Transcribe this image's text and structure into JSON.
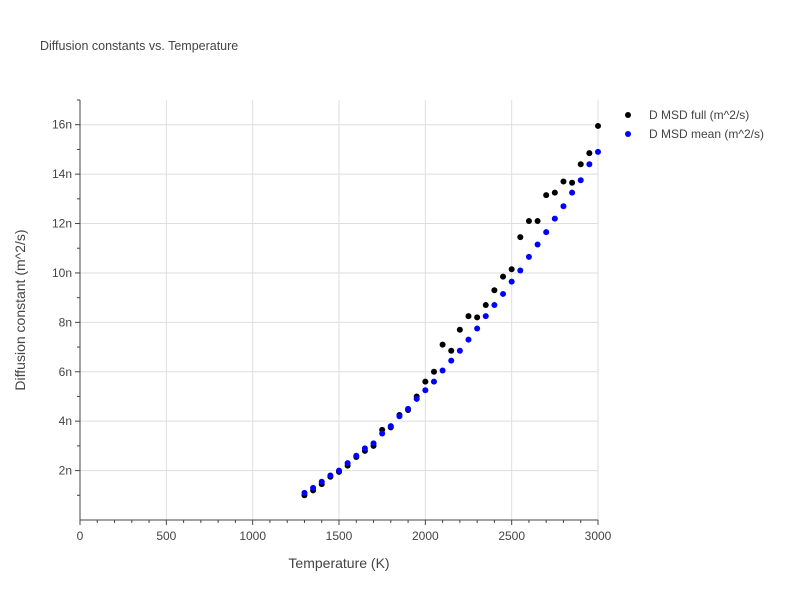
{
  "chart_data": {
    "type": "scatter",
    "title": "Diffusion constants vs. Temperature",
    "xlabel": "Temperature (K)",
    "ylabel": "Diffusion constant (m^2/s)",
    "xlim": [
      0,
      3000
    ],
    "ylim": [
      0,
      17
    ],
    "x_ticks": [
      0,
      500,
      1000,
      1500,
      2000,
      2500,
      3000
    ],
    "x_tick_labels": [
      "0",
      "500",
      "1000",
      "1500",
      "2000",
      "2500",
      "3000"
    ],
    "y_ticks": [
      2,
      4,
      6,
      8,
      10,
      12,
      14,
      16
    ],
    "y_tick_labels": [
      "2n",
      "4n",
      "6n",
      "8n",
      "10n",
      "12n",
      "14n",
      "16n"
    ],
    "grid": true,
    "legend_position": "top-right outside",
    "series": [
      {
        "name": "D MSD full (m^2/s)",
        "color": "#000000",
        "x": [
          1300,
          1350,
          1400,
          1450,
          1500,
          1550,
          1600,
          1650,
          1700,
          1750,
          1800,
          1850,
          1900,
          1950,
          2000,
          2050,
          2100,
          2150,
          2200,
          2250,
          2300,
          2350,
          2400,
          2450,
          2500,
          2550,
          2600,
          2650,
          2700,
          2750,
          2800,
          2850,
          2900,
          2950,
          3000
        ],
        "y": [
          1.0,
          1.2,
          1.45,
          1.75,
          1.95,
          2.2,
          2.55,
          2.8,
          3.0,
          3.65,
          3.75,
          4.25,
          4.45,
          5.0,
          5.6,
          6.0,
          7.1,
          6.85,
          7.7,
          8.25,
          8.2,
          8.7,
          9.3,
          9.85,
          10.15,
          11.45,
          12.1,
          12.1,
          13.15,
          13.25,
          13.7,
          13.65,
          14.4,
          14.85,
          15.95
        ]
      },
      {
        "name": "D MSD mean (m^2/s)",
        "color": "#0000ff",
        "x": [
          1300,
          1350,
          1400,
          1450,
          1500,
          1550,
          1600,
          1650,
          1700,
          1750,
          1800,
          1850,
          1900,
          1950,
          2000,
          2050,
          2100,
          2150,
          2200,
          2250,
          2300,
          2350,
          2400,
          2450,
          2500,
          2550,
          2600,
          2650,
          2700,
          2750,
          2800,
          2850,
          2900,
          2950,
          3000
        ],
        "y": [
          1.1,
          1.3,
          1.55,
          1.8,
          2.0,
          2.3,
          2.6,
          2.9,
          3.1,
          3.5,
          3.8,
          4.2,
          4.5,
          4.9,
          5.25,
          5.6,
          6.05,
          6.45,
          6.85,
          7.3,
          7.75,
          8.25,
          8.7,
          9.15,
          9.65,
          10.1,
          10.65,
          11.15,
          11.65,
          12.2,
          12.7,
          13.25,
          13.75,
          14.4,
          14.9
        ]
      }
    ]
  }
}
